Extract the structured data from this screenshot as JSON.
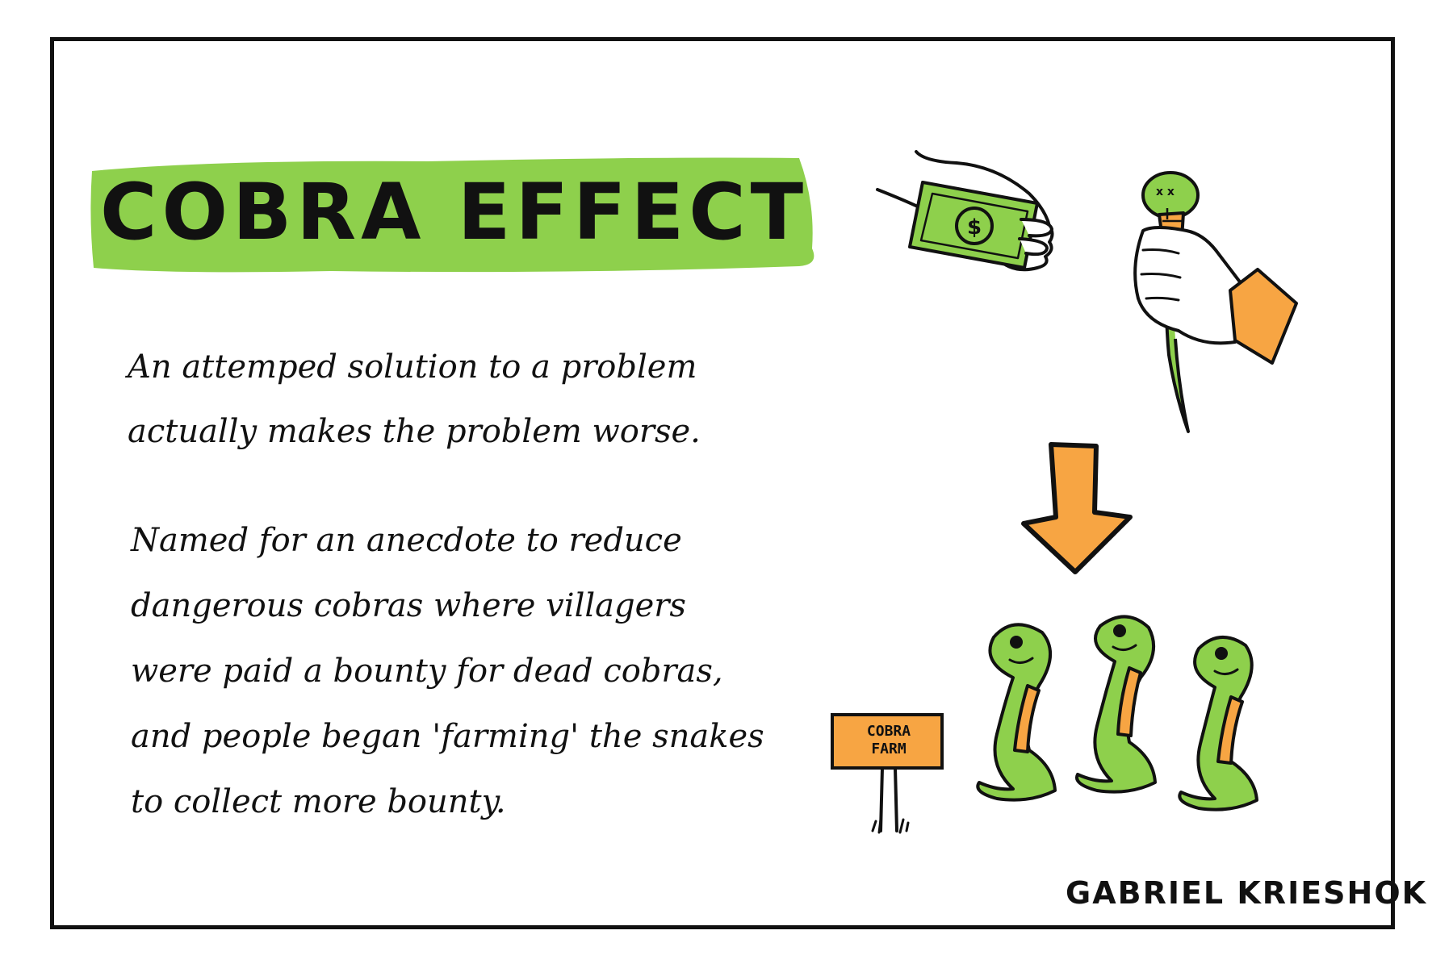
{
  "title": "COBRA EFFECT",
  "definition": "An attemped solution to a problem actually makes the problem worse.",
  "anecdote": "Named for an anecdote to reduce dangerous cobras where villagers were paid a bounty for dead cobras, and people began 'farming' the snakes to collect more bounty.",
  "sign": {
    "line1": "COBRA",
    "line2": "FARM"
  },
  "author": "GABRIEL KRIESHOK",
  "colors": {
    "green": "#8ed04c",
    "orange": "#f7a543",
    "ink": "#111111"
  }
}
